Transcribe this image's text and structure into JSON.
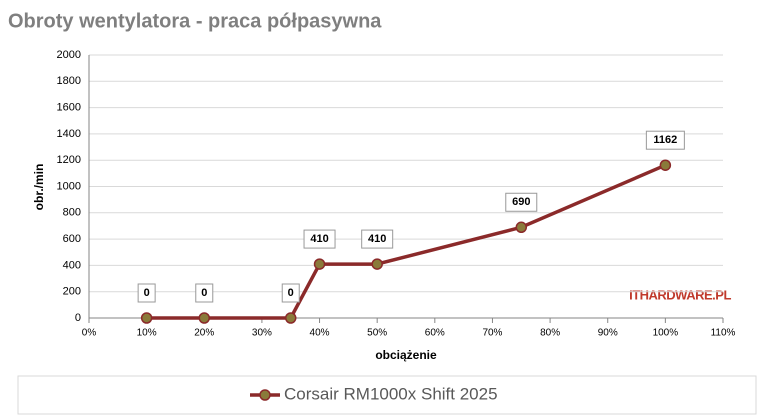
{
  "chart_data": {
    "type": "line",
    "title": "Obroty wentylatora - praca półpasywna",
    "x_label": "obciążenie",
    "y_label": "obr./min",
    "watermark": "ITHARDWARE.PL",
    "x": [
      10,
      20,
      35,
      40,
      50,
      75,
      100
    ],
    "series": [
      {
        "name": "Corsair RM1000x Shift 2025",
        "color": "#8b2a2a",
        "marker_color": "#8a7a3a",
        "values": [
          0,
          0,
          0,
          410,
          410,
          690,
          1162
        ]
      }
    ],
    "xlim": [
      0,
      110
    ],
    "xticks": [
      {
        "value": 0,
        "label": "0%"
      },
      {
        "value": 10,
        "label": "10%"
      },
      {
        "value": 20,
        "label": "20%"
      },
      {
        "value": 30,
        "label": "30%"
      },
      {
        "value": 40,
        "label": "40%"
      },
      {
        "value": 50,
        "label": "50%"
      },
      {
        "value": 60,
        "label": "60%"
      },
      {
        "value": 70,
        "label": "70%"
      },
      {
        "value": 80,
        "label": "80%"
      },
      {
        "value": 90,
        "label": "90%"
      },
      {
        "value": 100,
        "label": "100%"
      },
      {
        "value": 110,
        "label": "110%"
      }
    ],
    "ylim": [
      0,
      2000
    ],
    "yticks": [
      0,
      200,
      400,
      600,
      800,
      1000,
      1200,
      1400,
      1600,
      1800,
      2000
    ],
    "grid": true,
    "legend": "bottom"
  }
}
